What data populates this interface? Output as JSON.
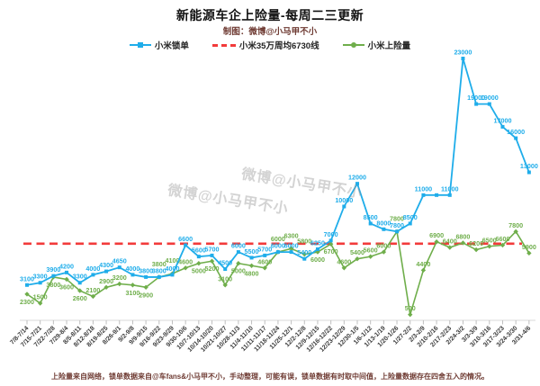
{
  "header": {
    "title": "新能源车企上险量-每周二三更新",
    "subtitle": "制图：微博@小马甲不小"
  },
  "legend": [
    {
      "label": "小米锁单",
      "color": "#1fadea",
      "style": "solid"
    },
    {
      "label": "小米35万周均6730线",
      "color": "#f23b3b",
      "style": "dashed"
    },
    {
      "label": "小米上险量",
      "color": "#6fae4b",
      "style": "solid"
    }
  ],
  "watermark": {
    "text": "微博@小马甲不小"
  },
  "footnote": "上险量来自网络，锁单数据来自@车fans&小马甲不小，手动整理，可能有误，锁单数据有时取中间值，上险量数据存在四舍五入的情况。",
  "chart_data": {
    "type": "line",
    "title": "新能源车企上险量-每周二三更新",
    "xlabel": "",
    "ylabel": "",
    "ylim": [
      0,
      24000
    ],
    "grid": false,
    "legend_position": "top",
    "categories": [
      "7/8-7/14",
      "7/15-7/21",
      "7/22-7/28",
      "7/29-8/4",
      "8/5-8/11",
      "8/12-8/18",
      "8/19-8/25",
      "8/26-9/1",
      "9/2-9/8",
      "9/9-9/15",
      "9/16-9/22",
      "9/23-9/29",
      "9/30-10/6",
      "10/7-10/13",
      "10/14-10/20",
      "10/21-10/27",
      "10/28-11/3",
      "11/4-11/10",
      "11/11-11/17",
      "11/18-11/24",
      "11/25-12/1",
      "12/2-12/8",
      "12/9-12/15",
      "12/16-12/22",
      "12/23-12/29",
      "12/30-1/5",
      "1/6-1/12",
      "1/13-1/19",
      "1/20-1/26",
      "1/27-2/2",
      "2/3-2/9",
      "2/10-2/16",
      "2/17-2/23",
      "2/24-3/2",
      "3/3-3/9",
      "3/10-3/16",
      "3/17-3/23",
      "3/24-3/30",
      "3/31-4/6"
    ],
    "series": [
      {
        "name": "小米锁单",
        "slug": "lock-orders",
        "color": "#1fadea",
        "marker": "square",
        "values": [
          3100,
          3300,
          3900,
          4200,
          3300,
          4000,
          4300,
          4650,
          4000,
          3800,
          3800,
          4000,
          6600,
          5600,
          5700,
          4500,
          6000,
          5500,
          5700,
          6000,
          6000,
          5400,
          6250,
          7000,
          10000,
          12000,
          8500,
          8000,
          7800,
          8500,
          11000,
          11000,
          11000,
          23000,
          19000,
          19000,
          17000,
          16000,
          13000
        ]
      },
      {
        "name": "小米35万周均6730线",
        "slug": "weekly-average-line",
        "color": "#f23b3b",
        "style": "dashed",
        "constant": 6730
      },
      {
        "name": "小米上险量",
        "slug": "insured-volume",
        "color": "#6fae4b",
        "marker": "diamond",
        "values": [
          2300,
          1500,
          3800,
          3600,
          2600,
          2100,
          2900,
          3200,
          3100,
          2900,
          3800,
          4100,
          4600,
          5000,
          5200,
          3100,
          5000,
          4800,
          4600,
          6000,
          6300,
          5800,
          6000,
          6700,
          4600,
          5400,
          5600,
          6000,
          7800,
          500,
          4400,
          6900,
          6400,
          6800,
          6200,
          6500,
          6600,
          7800,
          5900
        ]
      }
    ]
  }
}
